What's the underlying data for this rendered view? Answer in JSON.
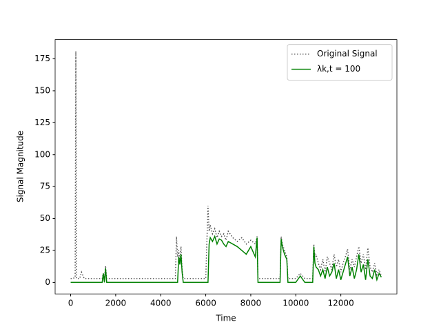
{
  "chart_data": {
    "type": "line",
    "xlabel": "Time",
    "ylabel": "Signal Magnitude",
    "x": [
      0,
      100,
      200,
      230,
      260,
      400,
      480,
      600,
      800,
      1000,
      1200,
      1400,
      1450,
      1500,
      1550,
      1600,
      1800,
      2000,
      2500,
      3000,
      3500,
      4000,
      4500,
      4650,
      4700,
      4750,
      4800,
      4850,
      4900,
      4950,
      5000,
      5500,
      6000,
      6100,
      6150,
      6200,
      6300,
      6400,
      6500,
      6600,
      6700,
      6800,
      6900,
      7000,
      7200,
      7400,
      7600,
      7800,
      8000,
      8200,
      8280,
      8320,
      8600,
      9000,
      9300,
      9350,
      9400,
      9500,
      9600,
      9650,
      10000,
      10200,
      10400,
      10750,
      10800,
      10850,
      10900,
      11000,
      11100,
      11200,
      11300,
      11400,
      11500,
      11600,
      11700,
      11800,
      11900,
      12000,
      12100,
      12200,
      12300,
      12400,
      12500,
      12600,
      12700,
      12800,
      12900,
      13000,
      13100,
      13200,
      13300,
      13400,
      13500,
      13600,
      13700,
      13800
    ],
    "series": [
      {
        "name": "Original Signal",
        "color": "#555555",
        "linestyle": "dotted",
        "values": [
          3,
          3,
          4,
          181,
          3,
          3,
          8,
          3,
          3,
          3,
          3,
          3,
          7,
          3,
          13,
          3,
          3,
          3,
          3,
          3,
          3,
          3,
          3,
          3,
          36,
          20,
          25,
          15,
          28,
          10,
          3,
          3,
          3,
          60,
          40,
          45,
          38,
          42,
          35,
          40,
          36,
          38,
          33,
          40,
          35,
          32,
          35,
          30,
          33,
          30,
          36,
          3,
          3,
          3,
          3,
          36,
          30,
          25,
          20,
          3,
          3,
          7,
          3,
          3,
          30,
          20,
          22,
          15,
          10,
          18,
          8,
          20,
          15,
          10,
          22,
          12,
          18,
          8,
          15,
          20,
          26,
          10,
          18,
          12,
          20,
          28,
          15,
          22,
          10,
          27,
          12,
          8,
          15,
          6,
          10,
          5
        ]
      },
      {
        "name": "λk,t = 100",
        "color": "#008000",
        "linestyle": "solid",
        "values": [
          0,
          0,
          0,
          0,
          0,
          0,
          0,
          0,
          0,
          0,
          0,
          0,
          7,
          0,
          11,
          0,
          0,
          0,
          0,
          0,
          0,
          0,
          0,
          0,
          0,
          0,
          20,
          14,
          22,
          8,
          0,
          0,
          0,
          0,
          30,
          35,
          32,
          36,
          30,
          34,
          33,
          30,
          28,
          32,
          30,
          28,
          25,
          22,
          28,
          20,
          35,
          0,
          0,
          0,
          0,
          34,
          28,
          22,
          18,
          0,
          0,
          5,
          0,
          0,
          28,
          15,
          12,
          10,
          5,
          10,
          3,
          12,
          5,
          8,
          15,
          3,
          10,
          2,
          8,
          14,
          20,
          5,
          12,
          3,
          10,
          22,
          8,
          14,
          2,
          18,
          5,
          3,
          10,
          2,
          7,
          4
        ]
      }
    ],
    "xlim": [
      -690,
      14490
    ],
    "ylim": [
      -9.05,
      190.05
    ],
    "xticks": [
      0,
      2000,
      4000,
      6000,
      8000,
      10000,
      12000
    ],
    "yticks": [
      0,
      25,
      50,
      75,
      100,
      125,
      150,
      175
    ],
    "legend": "upper right"
  }
}
